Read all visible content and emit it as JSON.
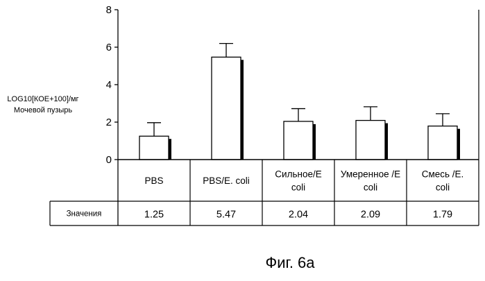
{
  "chart_data": {
    "type": "bar",
    "categories": [
      "PBS",
      "PBS/E. coli",
      "Сильное/E coli",
      "Умеренное /E coli",
      "Смесь /E. coli"
    ],
    "category_label_lines": [
      [
        "PBS"
      ],
      [
        "PBS/E. coli"
      ],
      [
        "Сильное/E",
        "coli"
      ],
      [
        "Умеренное /E",
        "coli"
      ],
      [
        "Смесь /E.",
        "coli"
      ]
    ],
    "values": [
      1.25,
      5.47,
      2.04,
      2.09,
      1.79
    ],
    "value_labels": [
      "1.25",
      "5.47",
      "2.04",
      "2.09",
      "1.79"
    ],
    "error_upper": [
      1.97,
      6.2,
      2.72,
      2.82,
      2.45
    ],
    "ylabel_lines": [
      "LOG10[КОЕ+100]/мг",
      "Мочевой пузырь"
    ],
    "ylim": [
      0,
      8
    ],
    "yticks": [
      0,
      2,
      4,
      6,
      8
    ],
    "ytick_labels": [
      "0",
      "2",
      "4",
      "6",
      "8"
    ],
    "table_row_label": "Значения",
    "grid": false,
    "bar_fill": "#ffffff",
    "bar_stroke": "#000000",
    "bar_shadow": "#000000"
  },
  "caption": "Фиг. 6а"
}
